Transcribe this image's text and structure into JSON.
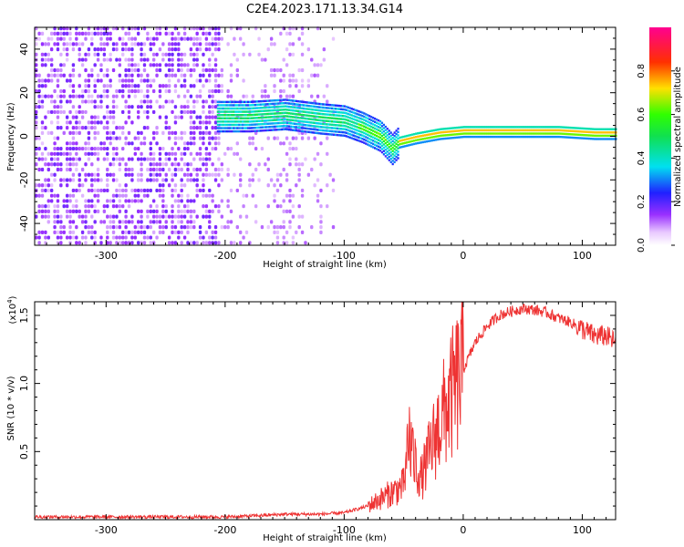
{
  "title": "C2E4.2023.171.13.34.G14",
  "colors": {
    "snr_line": "#ee3333",
    "axis": "#000000"
  },
  "chart_data": [
    {
      "type": "heatmap",
      "xlabel": "Height of straight line (km)",
      "ylabel": "Frequency (Hz)",
      "xlim": [
        -360,
        128
      ],
      "ylim": [
        -50,
        50
      ],
      "x_ticks": [
        "-300",
        "-200",
        "-100",
        "0",
        "100"
      ],
      "y_ticks": [
        "-40",
        "-20",
        "0",
        "20",
        "40"
      ],
      "colorbar": {
        "label": "Normalized spectral amplitude",
        "range": [
          0.0,
          1.0
        ],
        "ticks": [
          "0.0",
          "0.2",
          "0.4",
          "0.6",
          "0.8"
        ],
        "colormap": "rainbow"
      },
      "ridge": {
        "x": [
          -205,
          -180,
          -150,
          -120,
          -100,
          -85,
          -70,
          -60,
          -55,
          -40,
          -20,
          0,
          40,
          80,
          110,
          128
        ],
        "y": [
          9,
          9,
          10,
          8,
          7,
          4,
          0,
          -6,
          -3,
          -1,
          1,
          2,
          2,
          2,
          1,
          1
        ]
      }
    },
    {
      "type": "line",
      "xlabel": "Height of straight line (km)",
      "ylabel": "SNR (10 * v/v)",
      "y_multiplier": "(x10",
      "y_multiplier_exp": "4",
      "xlim": [
        -360,
        128
      ],
      "ylim": [
        0.0,
        1.6
      ],
      "x_ticks": [
        "-300",
        "-200",
        "-100",
        "0",
        "100"
      ],
      "y_ticks": [
        "0.5",
        "1.0",
        "1.5"
      ],
      "series": [
        {
          "x": [
            -360,
            -300,
            -250,
            -200,
            -170,
            -150,
            -120,
            -100,
            -80,
            -60,
            -50,
            -45,
            -40,
            -35,
            -30,
            -20,
            -10,
            0,
            10,
            20,
            30,
            40,
            50,
            60,
            70,
            80,
            90,
            100,
            110,
            120,
            128
          ],
          "y": [
            0.02,
            0.02,
            0.02,
            0.02,
            0.03,
            0.04,
            0.04,
            0.05,
            0.1,
            0.2,
            0.25,
            0.6,
            0.4,
            0.3,
            0.45,
            0.7,
            0.9,
            1.1,
            1.3,
            1.42,
            1.5,
            1.53,
            1.55,
            1.54,
            1.52,
            1.48,
            1.45,
            1.4,
            1.35,
            1.35,
            1.3
          ]
        }
      ]
    }
  ]
}
